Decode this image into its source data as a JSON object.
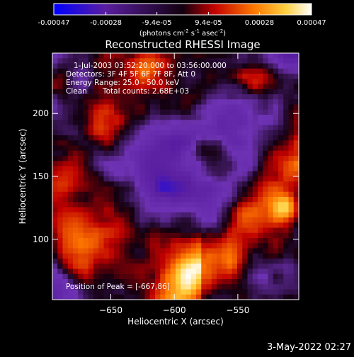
{
  "chart_data": {
    "type": "heatmap",
    "title": "Reconstructed RHESSI Image",
    "xlabel": "Heliocentric X (arcsec)",
    "ylabel": "Heliocentric Y (arcsec)",
    "xlim": [
      -696,
      -502
    ],
    "ylim": [
      52,
      248
    ],
    "x_ticks": [
      -650,
      -600,
      -550
    ],
    "y_ticks": [
      100,
      150,
      200
    ],
    "colorbar": {
      "ticks": [
        -0.00047,
        -0.00028,
        -9.4e-05,
        9.4e-05,
        0.00028,
        0.00047
      ],
      "tick_labels": [
        "-0.00047",
        "-0.00028",
        "-9.4e-05",
        "9.4e-05",
        "0.00028",
        "0.00047"
      ],
      "units_text": "(photons cm",
      "units_parts": [
        "(photons cm",
        "-2",
        " s",
        "-1",
        " asec",
        "-2",
        ")"
      ],
      "range": [
        -0.00047,
        0.00047
      ],
      "colors": [
        "#0000ff",
        "#6a2aa8",
        "#2a0030",
        "#cc0000",
        "#ff8800",
        "#ffffff"
      ]
    },
    "annotations": {
      "time_range": "1-Jul-2003 03:52:20.000 to 03:56:00.000",
      "detectors": "Detectors: 3F 4F 5F 6F 7F 8F, Att 0",
      "energy": "Energy Range: 25.0 - 50.0 keV",
      "clean": "Clean",
      "total_counts": "Total counts: 2.68E+03",
      "peak": "Position of Peak = [-667,86]"
    },
    "peak_position": [
      -667,
      86
    ],
    "grid": false,
    "image_grid_size": [
      48,
      48
    ],
    "note_values": "Intensity image; values estimated from the colour table: bright diagonal band toward lower-left, violet negative plateau along diagonal, dark/red patches between."
  },
  "footer": {
    "date": "3-May-2022 02:27"
  }
}
